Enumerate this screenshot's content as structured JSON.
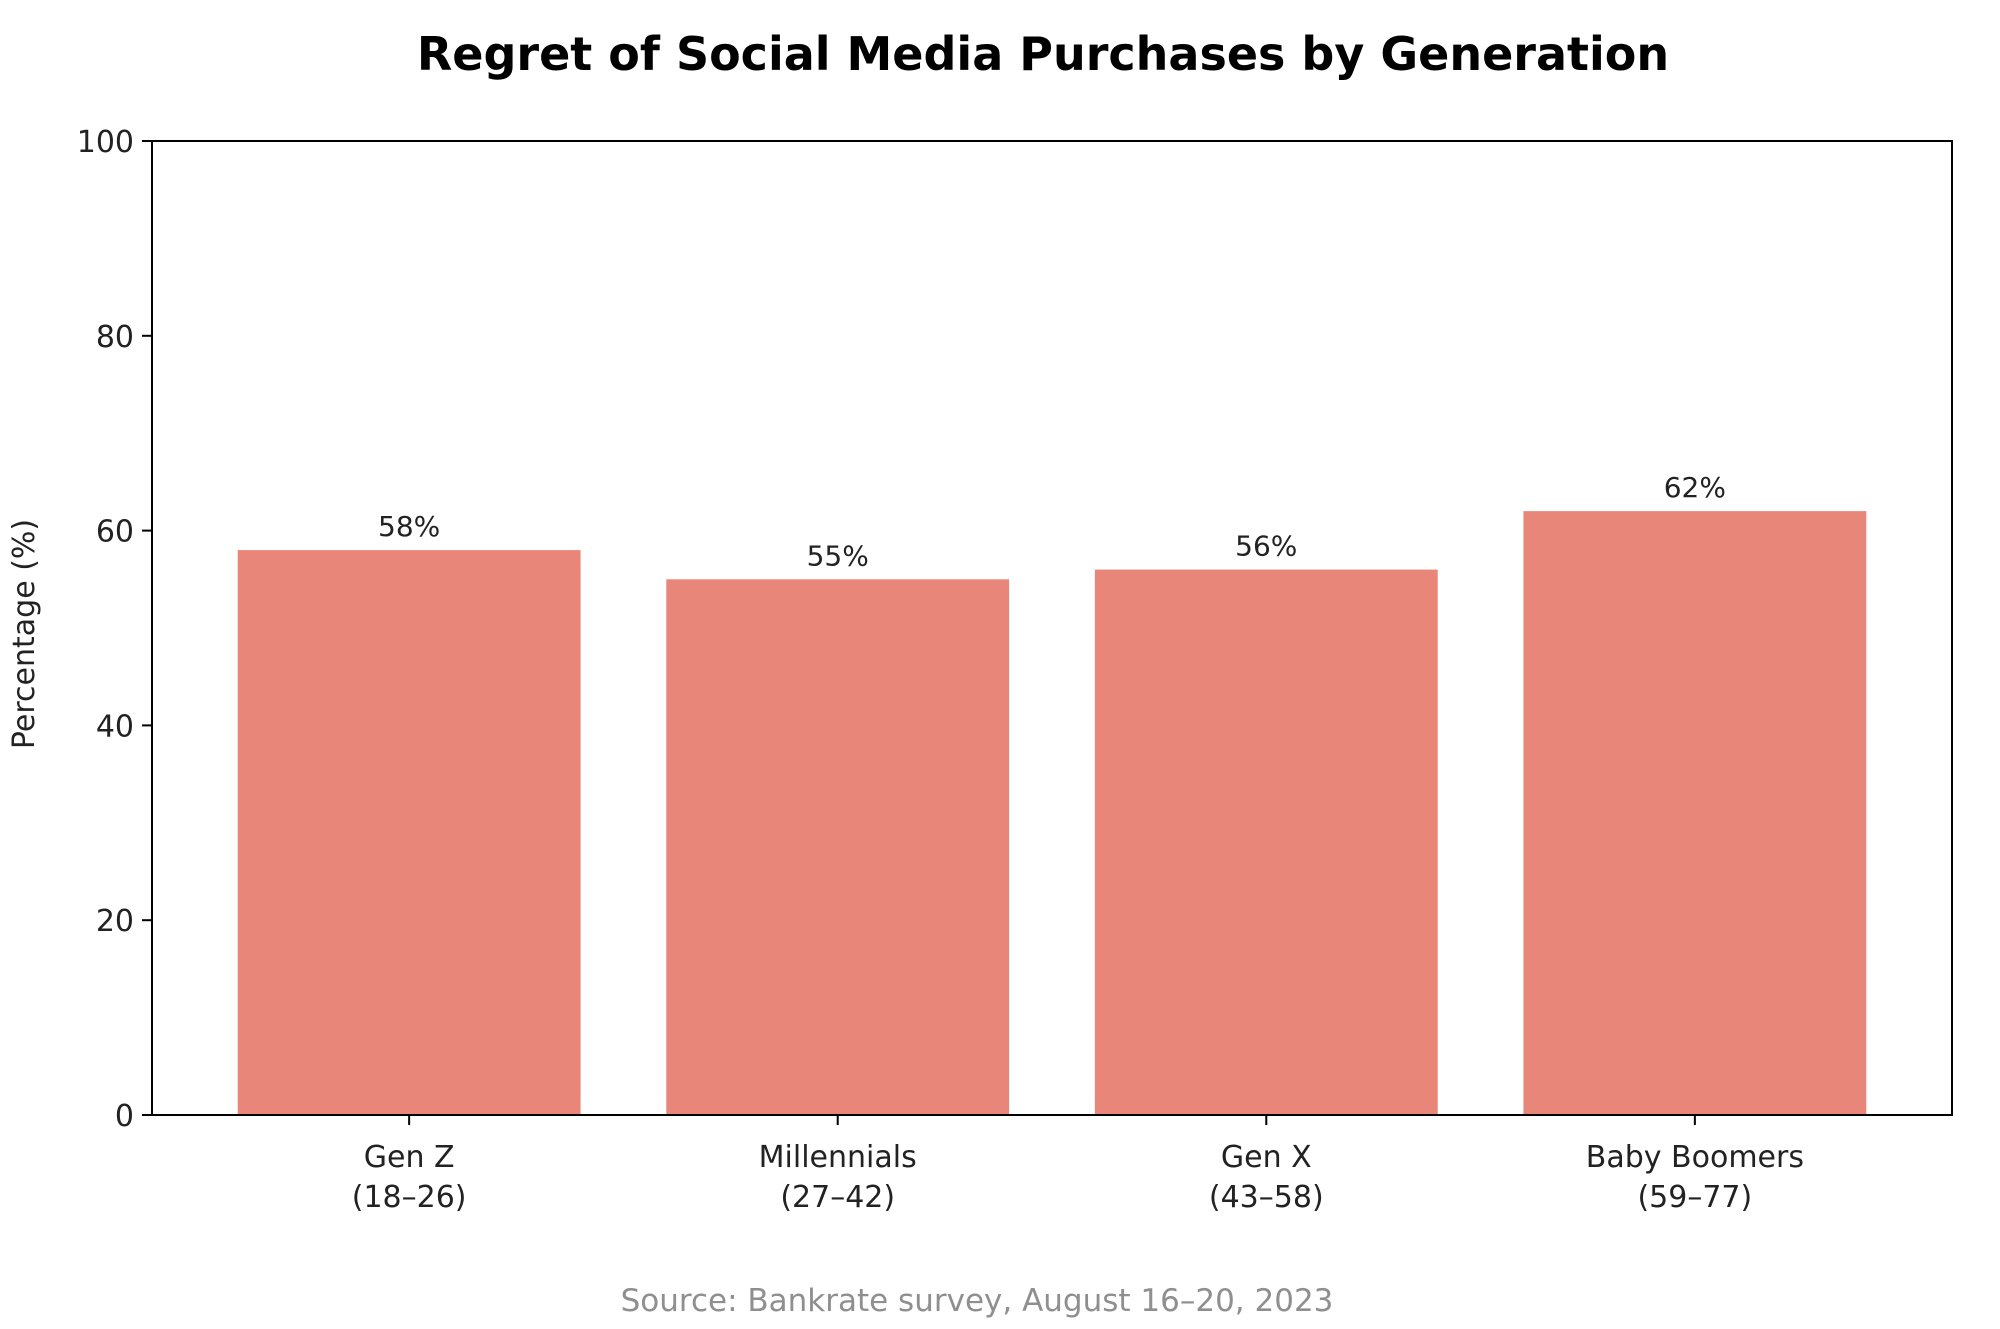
{
  "chart_data": {
    "type": "bar",
    "title": "Regret of Social Media Purchases by Generation",
    "ylabel": "Percentage (%)",
    "xlabel": "",
    "categories": [
      [
        "Gen Z",
        "(18–26)"
      ],
      [
        "Millennials",
        "(27–42)"
      ],
      [
        "Gen X",
        "(43–58)"
      ],
      [
        "Baby Boomers",
        "(59–77)"
      ]
    ],
    "values": [
      58,
      55,
      56,
      62
    ],
    "value_labels": [
      "58%",
      "55%",
      "56%",
      "62%"
    ],
    "ylim": [
      0,
      100
    ],
    "yticks": [
      0,
      20,
      40,
      60,
      80,
      100
    ],
    "grid": false,
    "bar_color": "#e8867a",
    "source": "Source: Bankrate survey, August 16–20, 2023"
  }
}
